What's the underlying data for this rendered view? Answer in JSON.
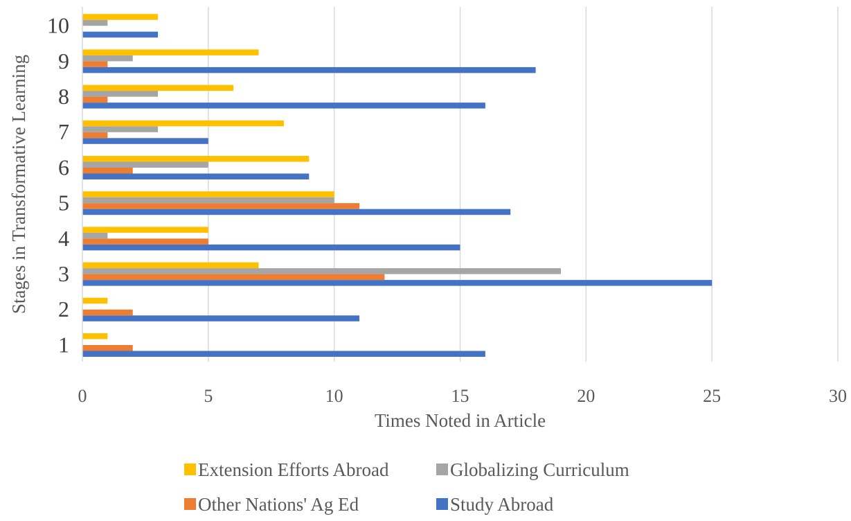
{
  "chart_data": {
    "type": "bar",
    "orientation": "horizontal",
    "title": "",
    "xlabel": "Times Noted in Article",
    "ylabel": "Stages in Transformative Learning",
    "categories": [
      "1",
      "2",
      "3",
      "4",
      "5",
      "6",
      "7",
      "8",
      "9",
      "10"
    ],
    "xlim": [
      0,
      30
    ],
    "xticks": [
      "0",
      "5",
      "10",
      "15",
      "20",
      "25",
      "30"
    ],
    "grid": "vertical",
    "legend_position": "bottom",
    "series": [
      {
        "name": "Study Abroad",
        "color": "#4472C4",
        "values": [
          16,
          11,
          25,
          15,
          17,
          9,
          5,
          16,
          18,
          3
        ]
      },
      {
        "name": "Other Nations' Ag Ed",
        "color": "#ED7D31",
        "values": [
          2,
          2,
          12,
          5,
          11,
          2,
          1,
          1,
          1,
          0
        ]
      },
      {
        "name": "Globalizing Curriculum",
        "color": "#A5A5A5",
        "values": [
          0,
          0,
          19,
          1,
          10,
          5,
          3,
          3,
          2,
          1
        ]
      },
      {
        "name": "Extension Efforts Abroad",
        "color": "#FFC000",
        "values": [
          1,
          1,
          7,
          5,
          10,
          9,
          8,
          6,
          7,
          3
        ]
      }
    ],
    "legend": [
      "Extension Efforts Abroad",
      "Globalizing Curriculum",
      "Other Nations' Ag Ed",
      "Study Abroad"
    ]
  }
}
